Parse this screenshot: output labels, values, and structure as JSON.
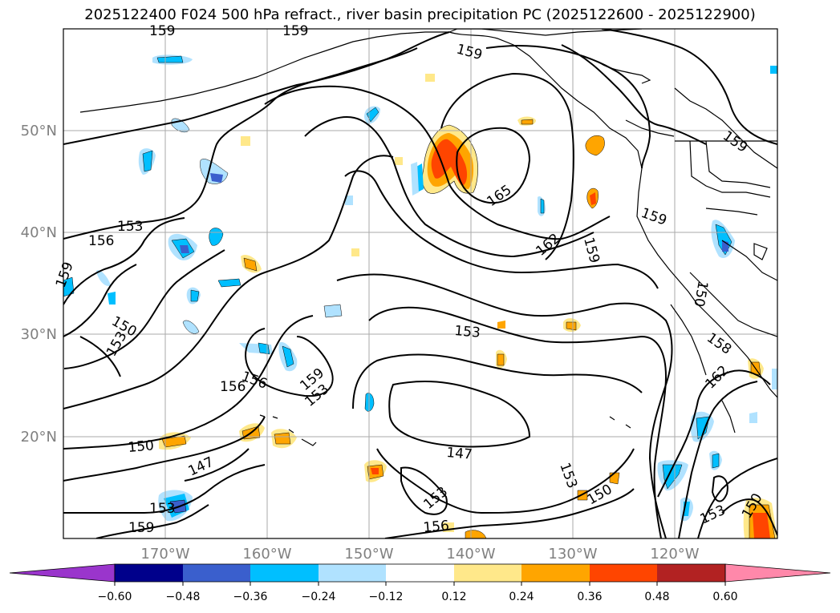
{
  "title": "2025122400 F024 500 hPa refract., river basin precipitation PC (2025122600 - 2025122900)",
  "lat_labels": [
    "50°N",
    "40°N",
    "30°N",
    "20°N"
  ],
  "lon_labels": [
    "170°W",
    "160°W",
    "150°W",
    "140°W",
    "130°W",
    "120°W"
  ],
  "contour_labels": [
    "159",
    "159",
    "159",
    "159",
    "153",
    "156",
    "159",
    "150",
    "153",
    "156",
    "159",
    "153",
    "156",
    "165",
    "162",
    "159",
    "159",
    "153",
    "150",
    "158",
    "162",
    "150",
    "147",
    "153",
    "147",
    "153",
    "150",
    "153",
    "156",
    "159",
    "153",
    "150"
  ],
  "colorbar": {
    "ticks": [
      "−0.60",
      "−0.48",
      "−0.36",
      "−0.24",
      "−0.12",
      "0.12",
      "0.24",
      "0.36",
      "0.48",
      "0.60"
    ],
    "colors": [
      "#9a35cc",
      "#00008b",
      "#3a5fcd",
      "#00bfff",
      "#b0e2ff",
      "#ffffff",
      "#ffe88a",
      "#ffa500",
      "#ff4500",
      "#b22222",
      "#ff88aa"
    ]
  }
}
